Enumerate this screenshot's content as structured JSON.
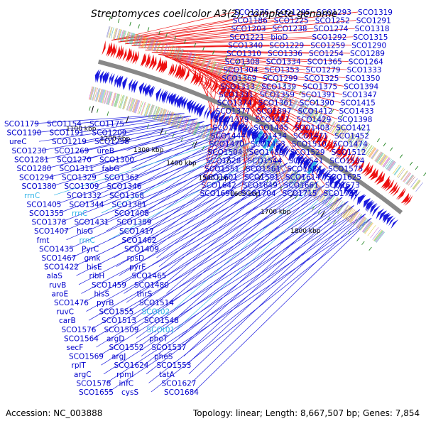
{
  "title": "Streptomyces coelicolor A3(2), complete genome",
  "footer": {
    "accession": "Accession: NC_003888",
    "topology": "Topology: linear; Length: 8,667,507 bp; Genes: 7,854"
  },
  "colors": {
    "forward_strand": "#ee1111",
    "reverse_strand": "#1a1adf",
    "rrna": "#33b5e8",
    "backbone": "#888888",
    "label": "#0000cc"
  },
  "ticks": [
    {
      "label": "1100 kbp",
      "pos": 0.0
    },
    {
      "label": "1200 kbp",
      "pos": 0.1176
    },
    {
      "label": "1300 kbp",
      "pos": 0.2353
    },
    {
      "label": "1400 kbp",
      "pos": 0.3529
    },
    {
      "label": "1500 kbp",
      "pos": 0.4706
    },
    {
      "label": "1600 kbp",
      "pos": 0.5882
    },
    {
      "label": "1700 kbp",
      "pos": 0.7059
    },
    {
      "label": "1800 kbp",
      "pos": 0.8235
    }
  ],
  "right_labels": [
    "SCO1276",
    "SCO1295",
    "SCO1293",
    "SCO1319",
    "SCO1186",
    "SCO1225",
    "SCO1252",
    "SCO1291",
    "SCO1203",
    "SCO1238",
    "SCO1274",
    "SCO1318",
    "SCO1221",
    "bioD",
    "SCO1292",
    "SCO1315",
    "SCO1340",
    "SCO1229",
    "SCO1259",
    "SCO1290",
    "SCO1310",
    "SCO1336",
    "SCO1254",
    "SCO1289",
    "SCO1308",
    "SCO1334",
    "SCO1365",
    "SCO1264",
    "SCO1304",
    "SCO1353",
    "SCO1279",
    "SCO1333",
    "SCO1369",
    "SCO1299",
    "SCO1325",
    "SCO1350",
    "SCO1313",
    "SCO1339",
    "SCO1375",
    "SCO1394",
    "SCO1331",
    "SCO1359",
    "SCO1391",
    "SCO1347",
    "SCO1374",
    "SCO1361",
    "SCO1390",
    "SCO1415",
    "SCO1377",
    "SCO1397",
    "SCO1412",
    "SCO1433",
    "SCO1379",
    "SCO1411",
    "SCO1429",
    "SCO1398",
    "SCO1418",
    "SCO1445",
    "SCO1403",
    "SCO1421",
    "SCO1444",
    "SCO1434",
    "SCO1471",
    "SCO1452",
    "SCO1470",
    "SCO1453",
    "SCO1510",
    "SCO1474",
    "SCO1504",
    "SCO1489",
    "SCO1529",
    "SCO1512",
    "SCO1528",
    "SCO1544",
    "SCO1541",
    "SCO1534",
    "SCO1551",
    "SCO1561",
    "SCO1584",
    "SCO1575",
    "SCO1601",
    "SCO1591",
    "SCO1614",
    "SCO1625",
    "SCO1642",
    "SCO1649",
    "SCO1661",
    "SCO1673",
    "SCO1690",
    "SCO1704",
    "SCO1715",
    "SCO1737"
  ],
  "left_labels": [
    {
      "text": "SCO1179"
    },
    {
      "text": "SCO1154"
    },
    {
      "text": "SCO1175"
    },
    {
      "text": "SCO1190"
    },
    {
      "text": "SCO1191"
    },
    {
      "text": "SCO1209"
    },
    {
      "text": "ureC"
    },
    {
      "text": "SCO1219"
    },
    {
      "text": "SCO1258"
    },
    {
      "text": "SCO1230"
    },
    {
      "text": "SCO1269"
    },
    {
      "text": "ureB"
    },
    {
      "text": "SCO1281"
    },
    {
      "text": "SCO1270"
    },
    {
      "text": "SCO1300"
    },
    {
      "text": "SCO1280"
    },
    {
      "text": "SCO1311"
    },
    {
      "text": "fabG"
    },
    {
      "text": "SCO1294"
    },
    {
      "text": "SCO1329"
    },
    {
      "text": "SCO1362"
    },
    {
      "text": "SCO1380"
    },
    {
      "text": "SCO1309"
    },
    {
      "text": "SCO1346"
    },
    {
      "text": "rrnC",
      "rrna": true
    },
    {
      "text": "SCO1332"
    },
    {
      "text": "SCO1368"
    },
    {
      "text": "SCO1405"
    },
    {
      "text": "SCO1344"
    },
    {
      "text": "SCO1381"
    },
    {
      "text": "SCO1355"
    },
    {
      "text": "rrnC",
      "rrna": true
    },
    {
      "text": "SCO1408"
    },
    {
      "text": "SCO1378"
    },
    {
      "text": "SCO1431"
    },
    {
      "text": "SCO1389"
    },
    {
      "text": "SCO1407"
    },
    {
      "text": "hisG"
    },
    {
      "text": "SCO1417"
    },
    {
      "text": "fmt"
    },
    {
      "text": "rrnC",
      "rrna": true
    },
    {
      "text": "SCO1462"
    },
    {
      "text": "SCO1435"
    },
    {
      "text": "PyrC"
    },
    {
      "text": "SCO1409"
    },
    {
      "text": "SCO1467"
    },
    {
      "text": "gmk"
    },
    {
      "text": "rpsD"
    },
    {
      "text": "SCO1422"
    },
    {
      "text": "hisE"
    },
    {
      "text": "pyrF"
    },
    {
      "text": "alaS"
    },
    {
      "text": "ribH"
    },
    {
      "text": "SCO1465"
    },
    {
      "text": "ruvB"
    },
    {
      "text": "SCO1459"
    },
    {
      "text": "SCO1480"
    },
    {
      "text": "aroE"
    },
    {
      "text": "hisS"
    },
    {
      "text": "thrS"
    },
    {
      "text": "SCO1476"
    },
    {
      "text": "pyrB"
    },
    {
      "text": "SCO1514"
    },
    {
      "text": "ruvC"
    },
    {
      "text": "SCO1555"
    },
    {
      "text": "SCOt02",
      "rrna": true
    },
    {
      "text": "carB"
    },
    {
      "text": "SCO1513"
    },
    {
      "text": "SCO1548"
    },
    {
      "text": "SCO1576"
    },
    {
      "text": "SCO1509"
    },
    {
      "text": "SCOt01",
      "rrna": true
    },
    {
      "text": "SCO1564"
    },
    {
      "text": "argD"
    },
    {
      "text": "pheT"
    },
    {
      "text": "secF"
    },
    {
      "text": "SCO1552"
    },
    {
      "text": "SCO1537"
    },
    {
      "text": "SCO1569"
    },
    {
      "text": "argJ"
    },
    {
      "text": "pheS"
    },
    {
      "text": "rplT"
    },
    {
      "text": "SCO1624"
    },
    {
      "text": "SCO1553"
    },
    {
      "text": "argC"
    },
    {
      "text": "rpmI"
    },
    {
      "text": "tatA"
    },
    {
      "text": "SCO1578"
    },
    {
      "text": "infC"
    },
    {
      "text": "SCO1627"
    },
    {
      "text": "SCO1655"
    },
    {
      "text": "cysS"
    },
    {
      "text": "SCO1684"
    }
  ]
}
